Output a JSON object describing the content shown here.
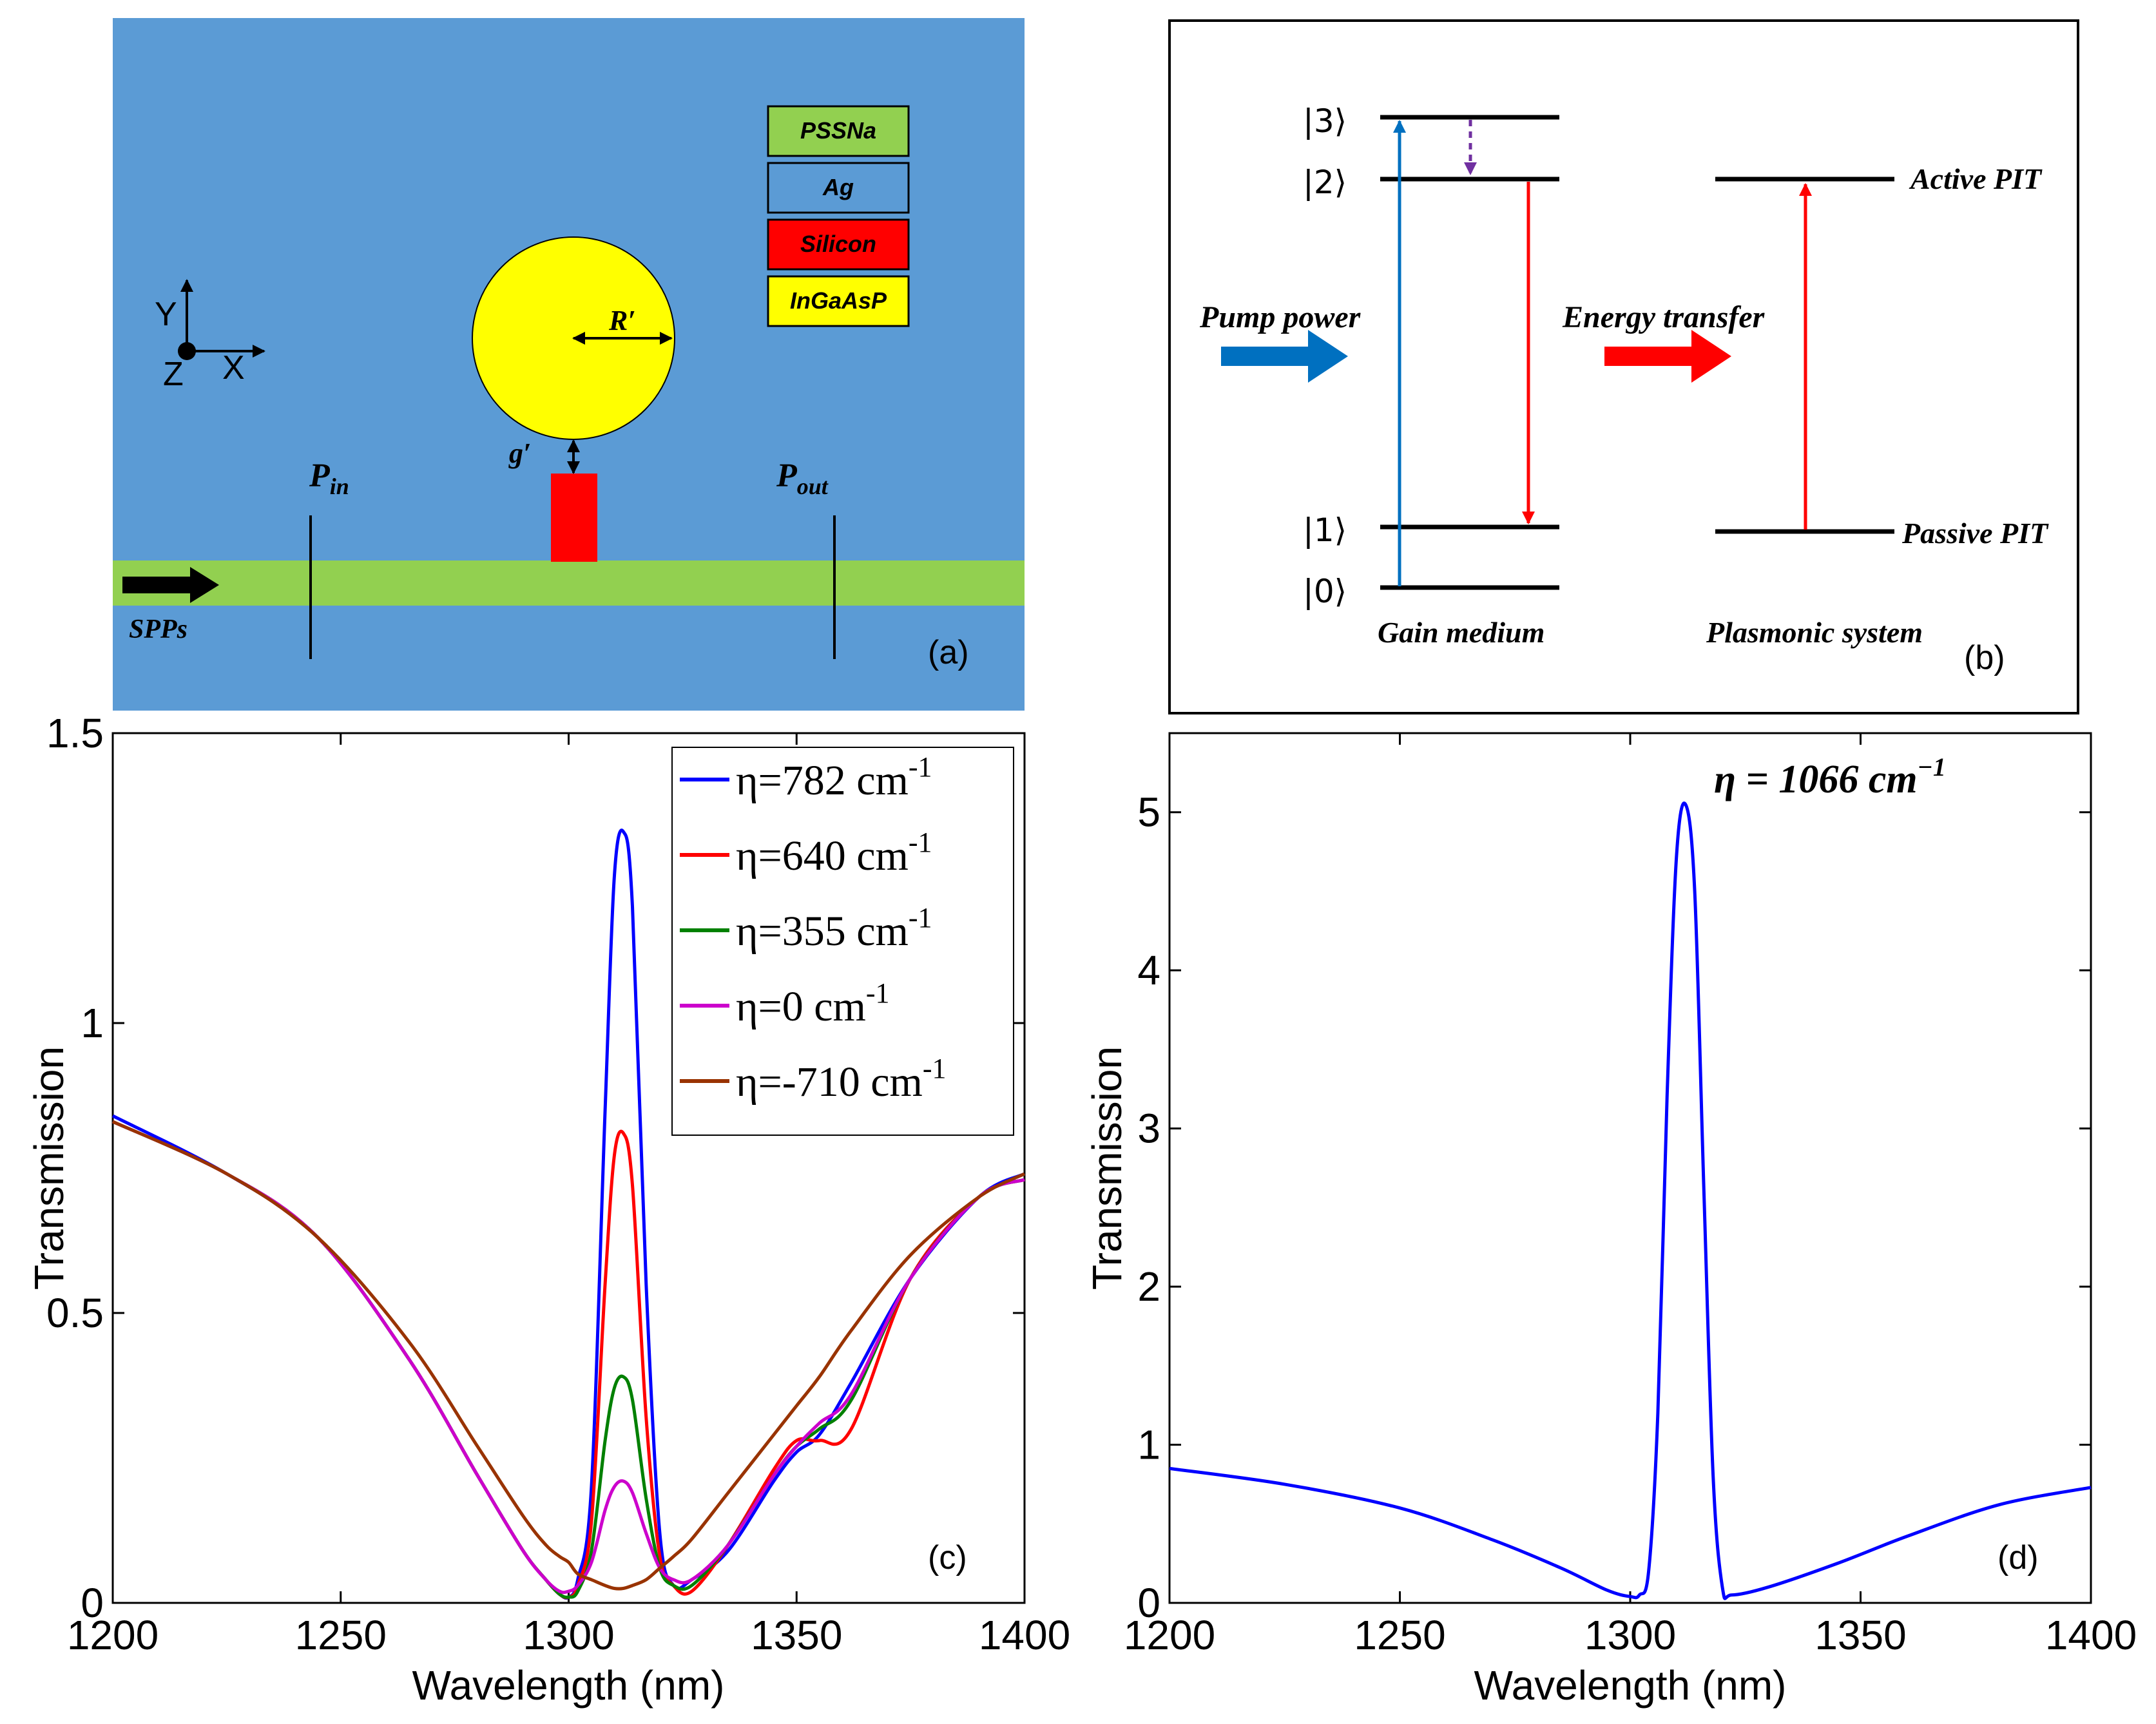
{
  "panel_a": {
    "legend": [
      "PSSNa",
      "Ag",
      "Silicon",
      "InGaAsP"
    ],
    "axis_labels": {
      "y": "Y",
      "z": "Z",
      "x": "X"
    },
    "radius_label": "R′",
    "gap_label": "g′",
    "pin_main": "P",
    "pin_sub": "in",
    "pout_main": "P",
    "pout_sub": "out",
    "spps_label": "SPPs",
    "panel_label": "(a)",
    "colors": {
      "ag": "#5b9bd5",
      "pssna": "#92d050",
      "silicon": "#ff0000",
      "ingaasp": "#ffff00"
    }
  },
  "panel_b": {
    "levels": [
      "|3⟩",
      "|2⟩",
      "|1⟩",
      "|0⟩"
    ],
    "pump_label": "Pump power",
    "energy_label": "Energy transfer",
    "active_label": "Active PIT",
    "passive_label": "Passive PIT",
    "gain_label": "Gain medium",
    "plasmonic_label": "Plasmonic system",
    "panel_label": "(b)",
    "colors": {
      "pump": "#0070c0",
      "transfer": "#ff0000",
      "relax": "#7030a0"
    }
  },
  "chart_data": [
    {
      "type": "line",
      "id": "c",
      "panel_label": "(c)",
      "xlabel": "Wavelength (nm)",
      "ylabel": "Transmission",
      "xlim": [
        1200,
        1400
      ],
      "ylim": [
        0,
        1.5
      ],
      "xticks": [
        1200,
        1250,
        1300,
        1350,
        1400
      ],
      "yticks": [
        0,
        0.5,
        1,
        1.5
      ],
      "ytick_labels": [
        "0",
        "0.5",
        "1",
        "1.5"
      ],
      "legend_position": "top-right",
      "x": [
        1200,
        1225,
        1245,
        1265,
        1280,
        1290,
        1295,
        1298,
        1300,
        1302,
        1305,
        1308,
        1310,
        1312,
        1314,
        1317,
        1320,
        1323,
        1327,
        1335,
        1345,
        1350,
        1355,
        1362,
        1375,
        1390,
        1400
      ],
      "series": [
        {
          "name": "η=782 cm",
          "sup": "-1",
          "color": "#0000ff",
          "values": [
            0.84,
            0.74,
            0.63,
            0.42,
            0.22,
            0.09,
            0.04,
            0.015,
            0.01,
            0.04,
            0.2,
            0.85,
            1.25,
            1.33,
            1.2,
            0.55,
            0.12,
            0.03,
            0.04,
            0.09,
            0.21,
            0.26,
            0.29,
            0.38,
            0.56,
            0.7,
            0.74
          ]
        },
        {
          "name": "η=640 cm",
          "sup": "-1",
          "color": "#ff0000",
          "values": [
            0.83,
            0.74,
            0.63,
            0.42,
            0.22,
            0.09,
            0.04,
            0.015,
            0.01,
            0.03,
            0.14,
            0.55,
            0.77,
            0.81,
            0.72,
            0.32,
            0.08,
            0.03,
            0.02,
            0.1,
            0.23,
            0.28,
            0.28,
            0.3,
            0.56,
            0.7,
            0.73
          ]
        },
        {
          "name": "η=355 cm",
          "sup": "-1",
          "color": "#008000",
          "values": [
            0.83,
            0.74,
            0.63,
            0.42,
            0.22,
            0.09,
            0.04,
            0.015,
            0.01,
            0.02,
            0.09,
            0.28,
            0.37,
            0.39,
            0.35,
            0.18,
            0.06,
            0.03,
            0.03,
            0.1,
            0.22,
            0.27,
            0.3,
            0.35,
            0.56,
            0.7,
            0.73
          ]
        },
        {
          "name": "η=0 cm",
          "sup": "-1",
          "color": "#cc00cc",
          "values": [
            0.83,
            0.74,
            0.63,
            0.42,
            0.22,
            0.09,
            0.04,
            0.02,
            0.02,
            0.03,
            0.07,
            0.16,
            0.2,
            0.21,
            0.19,
            0.12,
            0.06,
            0.04,
            0.04,
            0.1,
            0.22,
            0.27,
            0.31,
            0.36,
            0.56,
            0.7,
            0.73
          ]
        },
        {
          "name": "η=-710 cm",
          "sup": "-1",
          "color": "#993300",
          "values": [
            0.83,
            0.74,
            0.63,
            0.45,
            0.27,
            0.15,
            0.1,
            0.08,
            0.07,
            0.05,
            0.04,
            0.03,
            0.025,
            0.025,
            0.03,
            0.04,
            0.06,
            0.08,
            0.11,
            0.19,
            0.29,
            0.34,
            0.39,
            0.47,
            0.6,
            0.7,
            0.74
          ]
        }
      ]
    },
    {
      "type": "line",
      "id": "d",
      "panel_label": "(d)",
      "annotation": "η = 1066 cm",
      "annotation_sup": "−1",
      "xlabel": "Wavelength (nm)",
      "ylabel": "Transmission",
      "xlim": [
        1200,
        1400
      ],
      "ylim": [
        0,
        5.5
      ],
      "xticks": [
        1200,
        1250,
        1300,
        1350,
        1400
      ],
      "yticks": [
        0,
        1,
        2,
        3,
        4,
        5
      ],
      "ytick_labels": [
        "0",
        "1",
        "2",
        "3",
        "4",
        "5"
      ],
      "x": [
        1200,
        1225,
        1250,
        1270,
        1285,
        1295,
        1300,
        1302,
        1304,
        1306,
        1308,
        1310,
        1312,
        1314,
        1316,
        1318,
        1320,
        1322,
        1330,
        1345,
        1360,
        1380,
        1400
      ],
      "series": [
        {
          "name": "η=1066 cm-1",
          "color": "#0000ff",
          "values": [
            0.85,
            0.75,
            0.6,
            0.4,
            0.22,
            0.08,
            0.04,
            0.05,
            0.2,
            1.2,
            3.2,
            4.7,
            5.05,
            4.5,
            2.6,
            0.8,
            0.1,
            0.05,
            0.1,
            0.25,
            0.42,
            0.62,
            0.73
          ]
        }
      ]
    }
  ]
}
